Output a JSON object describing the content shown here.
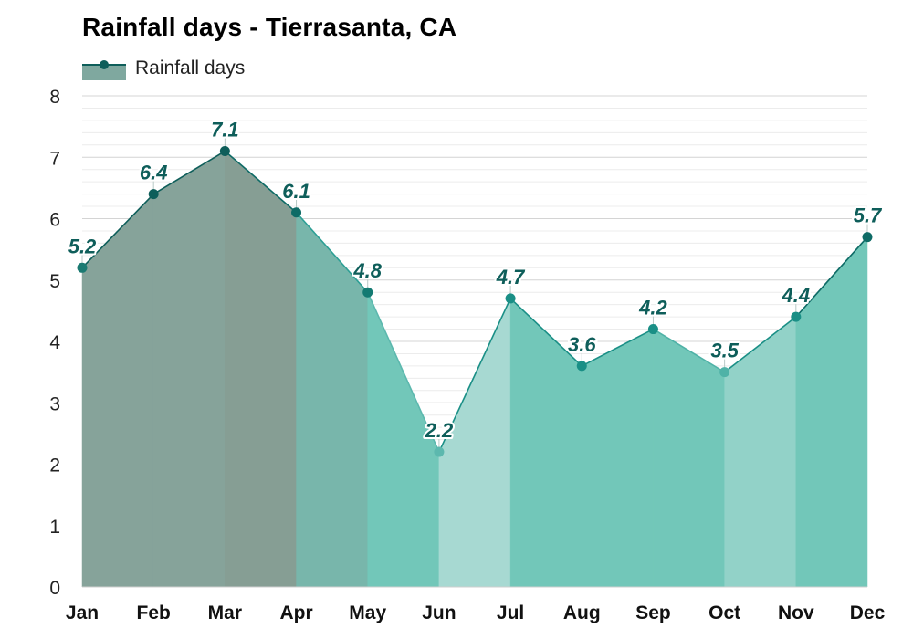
{
  "chart_data": {
    "type": "area",
    "title": "Rainfall days - Tierrasanta, CA",
    "categories": [
      "Jan",
      "Feb",
      "Mar",
      "Apr",
      "May",
      "Jun",
      "Jul",
      "Aug",
      "Sep",
      "Oct",
      "Nov",
      "Dec"
    ],
    "series": [
      {
        "name": "Rainfall days",
        "values": [
          5.2,
          6.4,
          7.1,
          6.1,
          4.8,
          2.2,
          4.7,
          3.6,
          4.2,
          3.5,
          4.4,
          5.7
        ]
      }
    ],
    "data_labels": [
      "5.2",
      "6.4",
      "7.1",
      "6.1",
      "4.8",
      "2.2",
      "4.7",
      "3.6",
      "4.2",
      "3.5",
      "4.4",
      "5.7"
    ],
    "yticks": [
      "0",
      "1",
      "2",
      "3",
      "4",
      "5",
      "6",
      "7",
      "8"
    ],
    "ylim": [
      0,
      8
    ],
    "grid": true,
    "legend_position": "top-left",
    "colors": {
      "line_dark": "#0e5e5a",
      "line_mid": "#1a8f86",
      "line_light": "#5cb8ae",
      "fills": [
        "#86a39a",
        "#86a39a",
        "#869e94",
        "#78b6ab",
        "#72c7b9",
        "#a7d9d2",
        "#72c7b9",
        "#72c7b9",
        "#72c7b9",
        "#92d2c8",
        "#72c7b9",
        "#7fb3a9"
      ],
      "lines": [
        "#0e5e5a",
        "#0e5e5a",
        "#0e5e5a",
        "#0e6b66",
        "#2d9f95",
        "#5cb8ae",
        "#1a8f86",
        "#1a8f86",
        "#1a8f86",
        "#4fb2a7",
        "#1a8f86",
        "#0e6b66"
      ],
      "points": [
        "#1b7a72",
        "#0e5e5a",
        "#0e5e5a",
        "#0e6b66",
        "#137a72",
        "#5cb8ae",
        "#1a8f86",
        "#1a8f86",
        "#1a8f86",
        "#4fb2a7",
        "#1a8f86",
        "#0e6b66"
      ]
    }
  }
}
